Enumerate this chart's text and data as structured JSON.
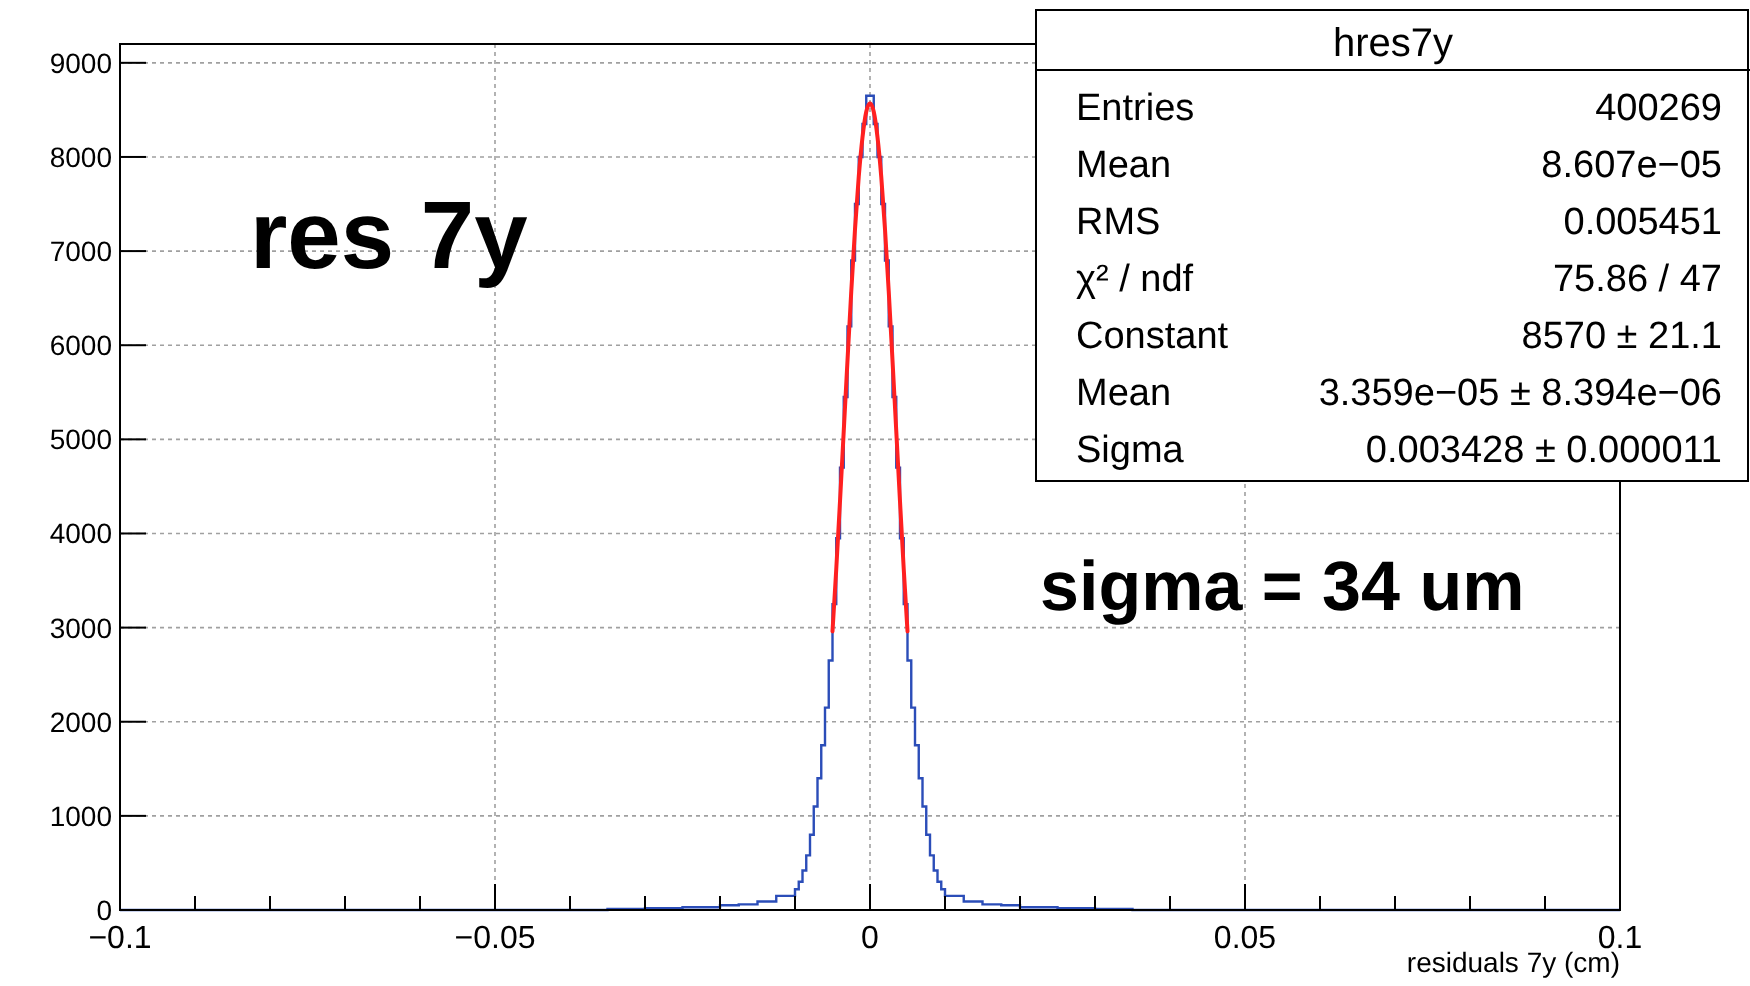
{
  "chart_data": {
    "type": "histogram",
    "xlabel": "residuals 7y (cm)",
    "xlim": [
      -0.1,
      0.1
    ],
    "ylim": [
      0,
      9200
    ],
    "xticks": [
      {
        "value": -0.1,
        "label": "−0.1"
      },
      {
        "value": -0.09,
        "label": null
      },
      {
        "value": -0.08,
        "label": null
      },
      {
        "value": -0.07,
        "label": null
      },
      {
        "value": -0.06,
        "label": null
      },
      {
        "value": -0.05,
        "label": "−0.05"
      },
      {
        "value": -0.04,
        "label": null
      },
      {
        "value": -0.03,
        "label": null
      },
      {
        "value": -0.02,
        "label": null
      },
      {
        "value": -0.01,
        "label": null
      },
      0,
      {
        "value": 0.01,
        "label": null
      },
      {
        "value": 0.02,
        "label": null
      },
      {
        "value": 0.03,
        "label": null
      },
      {
        "value": 0.04,
        "label": null
      },
      0.05,
      {
        "value": 0.06,
        "label": null
      },
      {
        "value": 0.07,
        "label": null
      },
      {
        "value": 0.08,
        "label": null
      },
      {
        "value": 0.09,
        "label": null
      },
      0.1
    ],
    "yticks": [
      0,
      1000,
      2000,
      3000,
      4000,
      5000,
      6000,
      7000,
      8000,
      9000
    ],
    "grid": true,
    "series": [
      {
        "type": "histogram",
        "color": "#2b4db8",
        "bins": [
          -0.1,
          -0.04,
          -0.035,
          -0.03,
          -0.025,
          -0.02,
          -0.0175,
          -0.015,
          -0.0125,
          -0.01,
          -0.0095,
          -0.009,
          -0.0085,
          -0.008,
          -0.0075,
          -0.007,
          -0.0065,
          -0.006,
          -0.0055,
          -0.005,
          -0.0045,
          -0.004,
          -0.0035,
          -0.003,
          -0.0025,
          -0.002,
          -0.0015,
          -0.001,
          -0.0005,
          0,
          0.0005,
          0.001,
          0.0015,
          0.002,
          0.0025,
          0.003,
          0.0035,
          0.004,
          0.0045,
          0.005,
          0.0055,
          0.006,
          0.0065,
          0.007,
          0.0075,
          0.008,
          0.0085,
          0.009,
          0.0095,
          0.01,
          0.0125,
          0.015,
          0.0175,
          0.02,
          0.025,
          0.03,
          0.035,
          0.04,
          0.1
        ],
        "values": [
          0,
          0,
          10,
          20,
          30,
          50,
          60,
          90,
          150,
          220,
          300,
          420,
          580,
          800,
          1100,
          1400,
          1750,
          2150,
          2650,
          3250,
          3950,
          4700,
          5450,
          6200,
          6900,
          7500,
          8000,
          8350,
          8650,
          8650,
          8350,
          8000,
          7500,
          6900,
          6200,
          5450,
          4700,
          3950,
          3250,
          2650,
          2150,
          1750,
          1400,
          1100,
          800,
          580,
          420,
          300,
          220,
          150,
          90,
          60,
          50,
          30,
          20,
          10,
          0,
          0
        ]
      },
      {
        "type": "line",
        "color": "#ff2020",
        "x": [
          -0.005,
          -0.0045,
          -0.004,
          -0.0035,
          -0.003,
          -0.0025,
          -0.002,
          -0.0015,
          -0.001,
          -0.0005,
          0,
          0.0005,
          0.001,
          0.0015,
          0.002,
          0.0025,
          0.003,
          0.0035,
          0.004,
          0.0045,
          0.005
        ],
        "values": [
          2960,
          3620,
          4340,
          5090,
          5840,
          6570,
          7230,
          7790,
          8210,
          8480,
          8570,
          8480,
          8210,
          7790,
          7230,
          6570,
          5840,
          5090,
          4340,
          3620,
          2960
        ]
      }
    ],
    "annotations": [
      "res 7y",
      "sigma = 34 um",
      "hres7y",
      "Entries",
      "400269",
      "Mean",
      "8.607e−05",
      "RMS",
      "0.005451",
      "χ² / ndf",
      "75.86 / 47",
      "Constant",
      "8570 ± 21.1",
      "Mean",
      "3.359e−05 ± 8.394e−06",
      "Sigma",
      "0.003428 ± 0.000011"
    ]
  }
}
